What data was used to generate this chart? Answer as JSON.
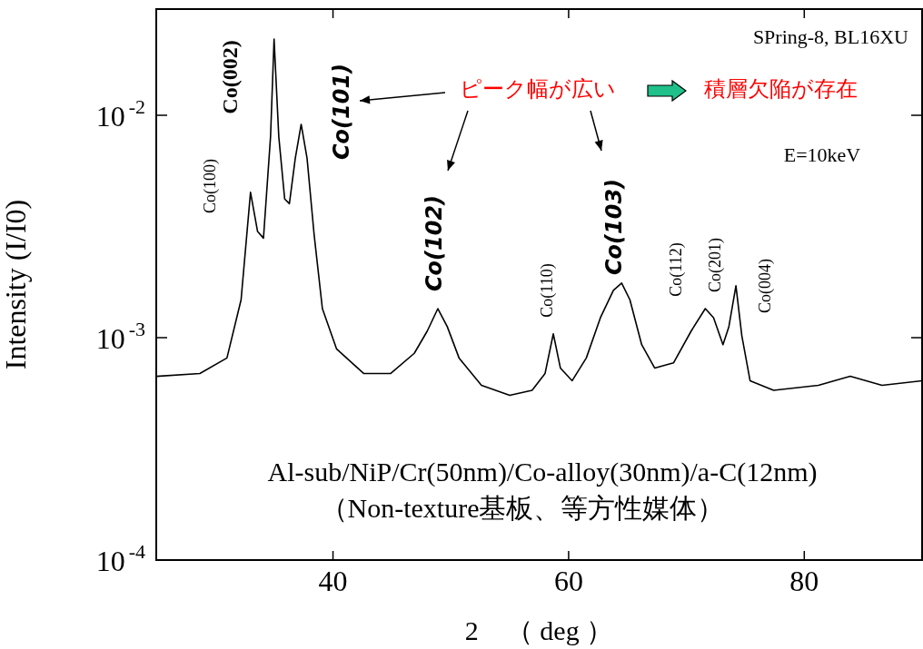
{
  "chart_data": {
    "type": "line",
    "xlabel": "2　（ deg ）",
    "ylabel": "Intensity (I/I0)",
    "log": "y",
    "legend": false,
    "grid": false,
    "xlim": [
      25,
      90
    ],
    "xticks": [
      40,
      60,
      80
    ],
    "ylim": [
      0.0001,
      0.03
    ],
    "yticks": [
      {
        "value": 0.01,
        "label": "10$^{-2}$"
      },
      {
        "value": 0.001,
        "label": "10$^{-3}$"
      },
      {
        "value": 0.0001,
        "label": "10$^{-4}$"
      }
    ],
    "series": [
      {
        "color": "#000000",
        "x": [
          25,
          28.7,
          31,
          32.2,
          33.0,
          33.6,
          34.1,
          34.7,
          35.0,
          35.4,
          35.9,
          36.3,
          36.8,
          37.3,
          37.8,
          38.4,
          39.1,
          40.3,
          42.6,
          44.9,
          46.9,
          48.0,
          48.9,
          49.7,
          50.7,
          52.6,
          55.0,
          56.9,
          58.0,
          58.7,
          59.3,
          60.3,
          61.5,
          62.7,
          63.8,
          64.5,
          65.2,
          66.2,
          67.3,
          68.9,
          70.4,
          71.6,
          72.3,
          73.1,
          73.6,
          74.2,
          74.7,
          75.4,
          77.4,
          81.2,
          83.9,
          86.6,
          90
        ],
        "values": [
          0.00067,
          0.00069,
          0.00081,
          0.00148,
          0.0045,
          0.003,
          0.0028,
          0.008,
          0.022,
          0.008,
          0.0042,
          0.004,
          0.0064,
          0.0091,
          0.0064,
          0.0029,
          0.00135,
          0.00089,
          0.00069,
          0.00069,
          0.00085,
          0.00107,
          0.00135,
          0.00112,
          0.00081,
          0.00061,
          0.00055,
          0.00058,
          0.00069,
          0.00104,
          0.00073,
          0.00064,
          0.00081,
          0.00123,
          0.00163,
          0.00176,
          0.00148,
          0.00093,
          0.00073,
          0.00077,
          0.00107,
          0.00135,
          0.00123,
          0.00093,
          0.00112,
          0.00171,
          0.00102,
          0.00064,
          0.00058,
          0.00061,
          0.00067,
          0.00061,
          0.00064
        ]
      }
    ],
    "annotations": [
      "Co(100)",
      "Co(002)",
      "Co(101)",
      "Co(102)",
      "Co(110)",
      "Co(103)",
      "Co(112)",
      "Co(201)",
      "Co(004)",
      "SPring-8, BL16XU",
      "ピーク幅が広い",
      "積層欠陥が存在",
      "E=10keV",
      "Al-sub/NiP/Cr(50nm)/Co-alloy(30nm)/a-C(12nm)",
      "（Non-texture基板、等方性媒体）"
    ]
  }
}
